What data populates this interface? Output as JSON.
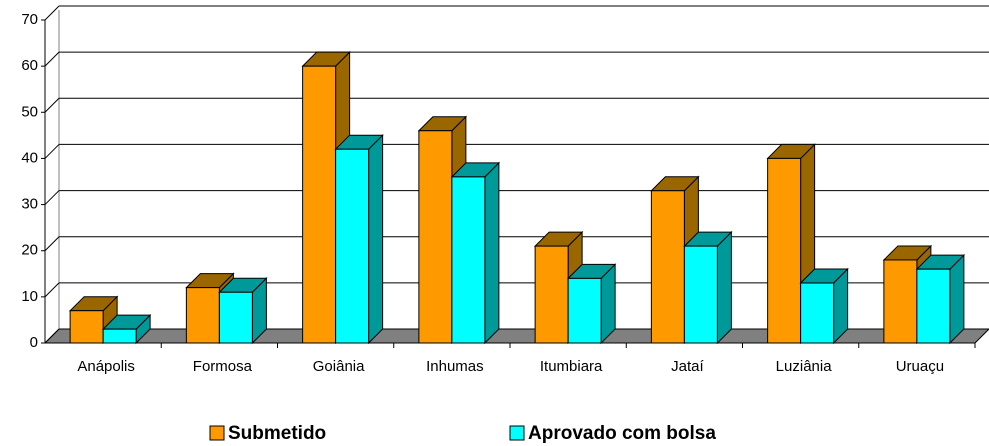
{
  "chart_data": {
    "type": "bar3d",
    "categories": [
      "Anápolis",
      "Formosa",
      "Goiânia",
      "Inhumas",
      "Itumbiara",
      "Jataí",
      "Luziânia",
      "Uruaçu"
    ],
    "series": [
      {
        "name": "Submetido",
        "color": "#ff9900",
        "side": "#996600",
        "values": [
          7,
          12,
          60,
          46,
          21,
          33,
          40,
          18
        ]
      },
      {
        "name": "Aprovado com bolsa",
        "color": "#00ffff",
        "side": "#009999",
        "values": [
          3,
          11,
          42,
          36,
          14,
          21,
          13,
          16
        ]
      }
    ],
    "ylim": [
      0,
      70
    ],
    "yticks": [
      0,
      10,
      20,
      30,
      40,
      50,
      60,
      70
    ],
    "grid": true
  }
}
